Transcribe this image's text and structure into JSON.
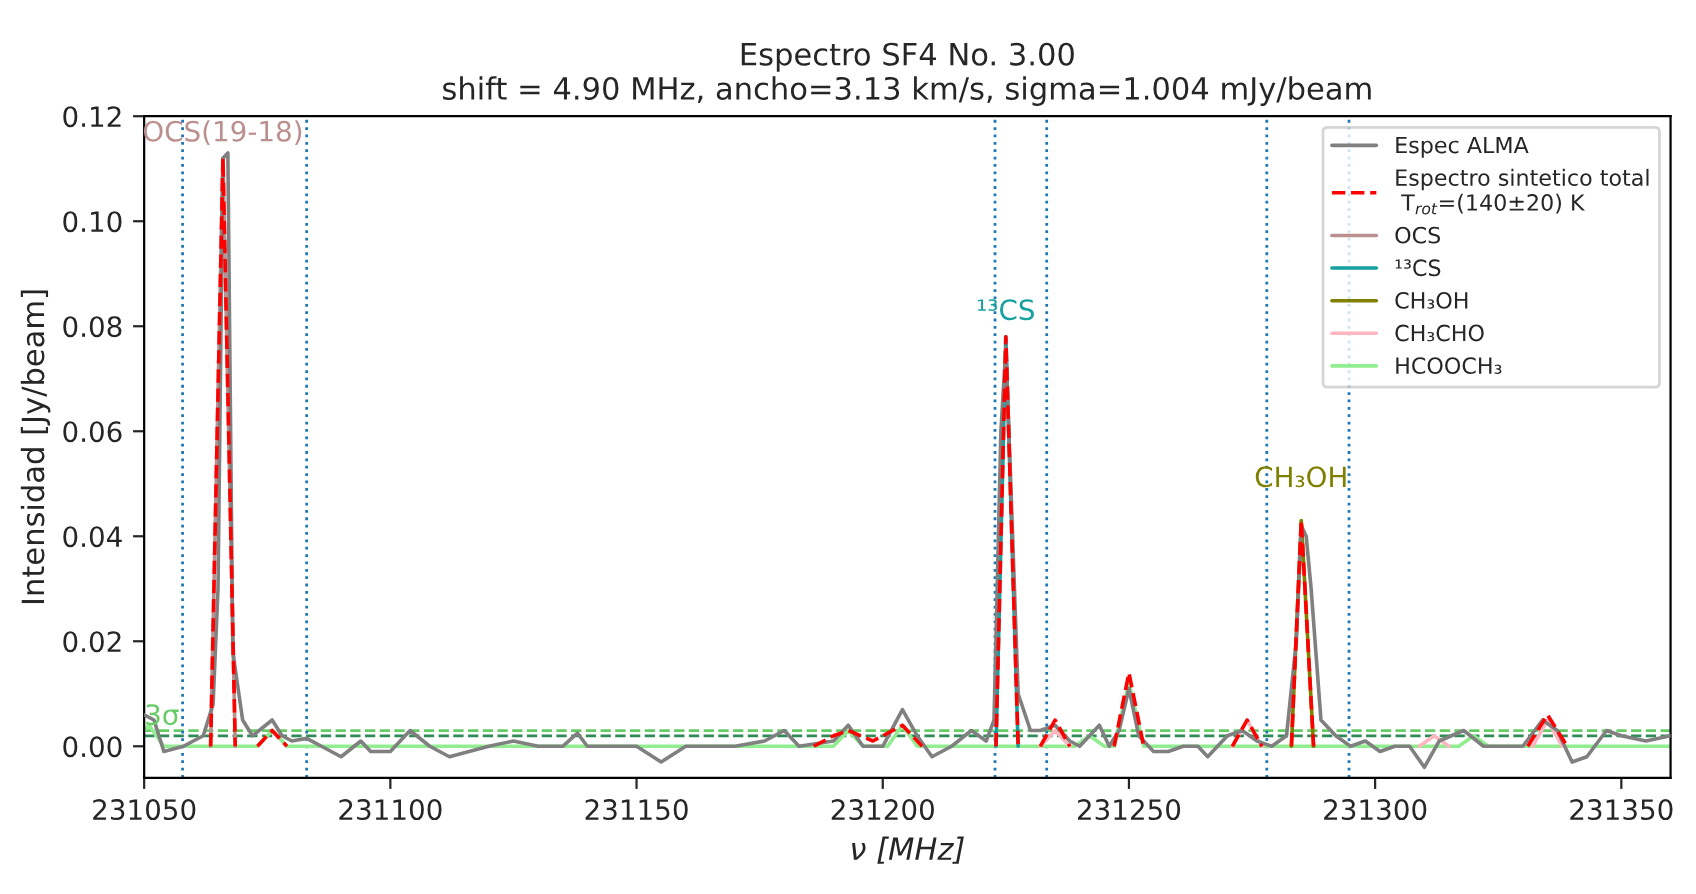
{
  "chart_data": {
    "type": "line",
    "title": "Espectro SF4 No. 3.00",
    "subtitle": "shift = 4.90 MHz, ancho=3.13 km/s, sigma=1.004 mJy/beam",
    "xlabel": "ν [MHz]",
    "ylabel": "Intensidad [Jy/beam]",
    "xlim": [
      231050,
      231360
    ],
    "xticks": [
      231050,
      231100,
      231150,
      231200,
      231250,
      231300,
      231350
    ],
    "ylim": [
      -0.006,
      0.12
    ],
    "yticks": [
      {
        "value": 0,
        "label": "0.00"
      },
      {
        "value": 0.02,
        "label": "0.02"
      },
      {
        "value": 0.04,
        "label": "0.04"
      },
      {
        "value": 0.06,
        "label": "0.06"
      },
      {
        "value": 0.08,
        "label": "0.08"
      },
      {
        "value": 0.1,
        "label": "0.10"
      },
      {
        "value": 0.12,
        "label": "0.12"
      }
    ],
    "grid": false,
    "legend": "top right",
    "marker": "none",
    "series": [
      {
        "name": "Espec ALMA",
        "color": "#808080",
        "line_style": "solid",
        "x": [
          231050,
          231052,
          231054,
          231058,
          231060,
          231062,
          231064,
          231065,
          231066,
          231067,
          231068,
          231070,
          231072,
          231076,
          231078,
          231080,
          231083,
          231086,
          231090,
          231094,
          231096,
          231100,
          231104,
          231108,
          231112,
          231116,
          231120,
          231125,
          231130,
          231135,
          231138,
          231140,
          231145,
          231150,
          231155,
          231160,
          231165,
          231170,
          231176,
          231180,
          231183,
          231190,
          231193,
          231196,
          231200,
          231204,
          231207,
          231210,
          231214,
          231218,
          231221,
          231222.6,
          231224,
          231225,
          231226,
          231227.5,
          231230,
          231232,
          231235,
          231238,
          231240,
          231244,
          231246,
          231248,
          231250,
          231252,
          231255,
          231258,
          231261,
          231264,
          231266,
          231270,
          231273,
          231276,
          231279,
          231282,
          231284,
          231285,
          231286,
          231287,
          231289,
          231292,
          231295,
          231298,
          231301,
          231304,
          231307,
          231310,
          231313,
          231318,
          231322,
          231326,
          231330,
          231334,
          231337,
          231340,
          231343,
          231347,
          231350,
          231355,
          231360
        ],
        "values": [
          0.006,
          0.005,
          -0.001,
          0.0,
          0.001,
          0.002,
          0.008,
          0.03,
          0.112,
          0.113,
          0.018,
          0.005,
          0.002,
          0.005,
          0.002,
          0.001,
          0.0015,
          0.0,
          -0.002,
          0.001,
          -0.001,
          -0.001,
          0.003,
          0.0,
          -0.002,
          -0.001,
          0.0,
          0.001,
          0.0,
          0.0,
          0.0025,
          0.0,
          0.0,
          0.0,
          -0.003,
          0.0,
          0.0,
          0.0,
          0.001,
          0.003,
          0.0,
          0.001,
          0.004,
          0.0,
          0.0,
          0.007,
          0.002,
          -0.002,
          0.0,
          0.003,
          0.001,
          0.005,
          0.06,
          0.076,
          0.05,
          0.01,
          0.003,
          0.003,
          0.004,
          0.001,
          0.0,
          0.004,
          0.0,
          0.003,
          0.011,
          0.002,
          -0.001,
          -0.001,
          0.0,
          0.0,
          -0.002,
          0.002,
          0.003,
          0.001,
          0.0,
          0.002,
          0.02,
          0.042,
          0.04,
          0.03,
          0.005,
          0.002,
          0.0,
          0.001,
          -0.001,
          0.0,
          0.0,
          -0.004,
          0.001,
          0.003,
          0.0,
          0.0,
          0.0,
          0.005,
          0.003,
          -0.003,
          -0.002,
          0.003,
          0.002,
          0.001,
          0.002
        ]
      },
      {
        "name": "Espectro sintetico total\n T$_{rot}$=(140±20) K",
        "color": "#ff0000",
        "line_style": "dashed",
        "x": [
          231063.5,
          231066,
          231068.5,
          231070,
          231073,
          231076,
          231079,
          231080,
          231186,
          231190,
          231193,
          231198,
          231204,
          231208,
          231210,
          231223,
          231225,
          231227.5,
          231229,
          231232,
          231235,
          231238,
          231240,
          231247,
          231250,
          231253,
          231255,
          231271,
          231274,
          231277,
          231279,
          231283,
          231285,
          231287.5,
          231290,
          231331,
          231335,
          231339
        ],
        "values": [
          0,
          0.112,
          0,
          null,
          0,
          0.003,
          0,
          null,
          0,
          0.002,
          0.003,
          0.001,
          0.004,
          0,
          null,
          0,
          0.078,
          0,
          null,
          0,
          0.005,
          0,
          null,
          0,
          0.014,
          0,
          null,
          0,
          0.005,
          0,
          null,
          0,
          0.043,
          0,
          null,
          0,
          0.006,
          0
        ]
      },
      {
        "name": "OCS",
        "color": "#bc8f8f",
        "line_style": "solid",
        "x": [
          231063.5,
          231066,
          231068.5
        ],
        "values": [
          0,
          0.112,
          0
        ]
      },
      {
        "name": "¹³CS",
        "color": "#17a0a0",
        "line_style": "solid",
        "x": [
          231223,
          231225,
          231227.5
        ],
        "values": [
          0,
          0.078,
          0
        ]
      },
      {
        "name": "CH₃OH",
        "color": "#808000",
        "line_style": "solid",
        "x": [
          231283,
          231285,
          231287.5
        ],
        "values": [
          0,
          0.043,
          0
        ]
      },
      {
        "name": "CH₃CHO",
        "color": "#ffb6c1",
        "line_style": "solid",
        "x": [
          231232,
          231235,
          231238,
          231240,
          231271,
          231274,
          231277,
          231280,
          231309,
          231312,
          231315,
          231320,
          231332,
          231335,
          231338
        ],
        "values": [
          0,
          0.003,
          0,
          null,
          0,
          0.005,
          0,
          null,
          0,
          0.002,
          0,
          null,
          0,
          0.005,
          0
        ]
      },
      {
        "name": "HCOOCH₃",
        "color": "#90ee90",
        "line_style": "solid",
        "x": [
          231050,
          231051,
          231054,
          231073,
          231076,
          231079,
          231190,
          231193,
          231196,
          231201,
          231204,
          231207,
          231239,
          231242,
          231245,
          231247,
          231250,
          231253,
          231317,
          231320,
          231323,
          231360
        ],
        "values": [
          0.003,
          0.004,
          0,
          0,
          0.003,
          0,
          0,
          0.003,
          0,
          0,
          0.004,
          0,
          0,
          0.002,
          0,
          0,
          0.012,
          0,
          0,
          0.002,
          0,
          0
        ]
      }
    ],
    "ref_lines": [
      {
        "axis": "x",
        "value": 231057.8,
        "color": "#1f77b4",
        "line_style": "dotted"
      },
      {
        "axis": "x",
        "value": 231083,
        "color": "#1f77b4",
        "line_style": "dotted"
      },
      {
        "axis": "x",
        "value": 231222.8,
        "color": "#1f77b4",
        "line_style": "dotted"
      },
      {
        "axis": "x",
        "value": 231233.3,
        "color": "#1f77b4",
        "line_style": "dotted"
      },
      {
        "axis": "x",
        "value": 231278,
        "color": "#1f77b4",
        "line_style": "dotted"
      },
      {
        "axis": "x",
        "value": 231294.7,
        "color": "#1f77b4",
        "line_style": "dotted"
      },
      {
        "axis": "y",
        "value": 0.003,
        "label": "3σ",
        "color": "#66cc66",
        "line_style": "dashed"
      },
      {
        "axis": "y",
        "value": 0.002,
        "color": "#2e8b57",
        "line_style": "dashed"
      }
    ],
    "annotations": [
      {
        "text": "OCS(19-18)",
        "x": 231066,
        "y": 0.112
      },
      {
        "text": "¹³CS",
        "x": 231225,
        "y": 0.078
      },
      {
        "text": "CH₃OH",
        "x": 231285,
        "y": 0.043
      }
    ]
  }
}
